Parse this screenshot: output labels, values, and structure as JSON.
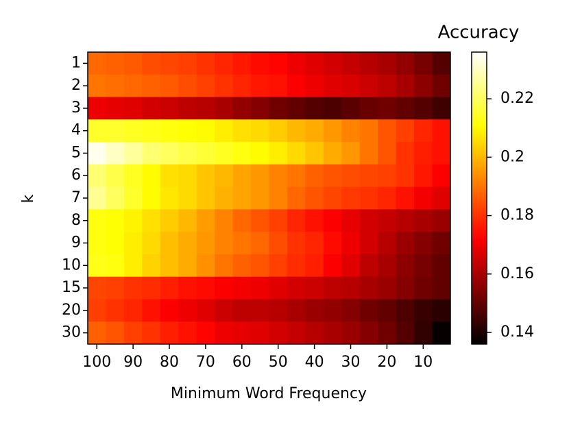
{
  "chart_data": {
    "type": "heatmap",
    "colorbar_title": "Accuracy",
    "xlabel": "Minimum Word Frequency",
    "ylabel": "k",
    "colormap": "hot",
    "x": [
      100,
      95,
      90,
      85,
      80,
      75,
      70,
      65,
      60,
      55,
      50,
      45,
      40,
      35,
      30,
      25,
      20,
      15,
      10,
      5
    ],
    "xlim": [
      102.5,
      2.5
    ],
    "xticks": [
      100,
      90,
      80,
      70,
      60,
      50,
      40,
      30,
      20,
      10
    ],
    "categories": [
      "1",
      "2",
      "3",
      "4",
      "5",
      "6",
      "7",
      "8",
      "9",
      "10",
      "15",
      "20",
      "30"
    ],
    "z": [
      [
        0.188,
        0.187,
        0.186,
        0.184,
        0.183,
        0.182,
        0.18,
        0.178,
        0.176,
        0.174,
        0.173,
        0.17,
        0.168,
        0.166,
        0.164,
        0.162,
        0.16,
        0.157,
        0.153,
        0.148
      ],
      [
        0.19,
        0.189,
        0.188,
        0.187,
        0.186,
        0.184,
        0.182,
        0.18,
        0.178,
        0.176,
        0.175,
        0.172,
        0.17,
        0.168,
        0.167,
        0.165,
        0.163,
        0.16,
        0.156,
        0.152
      ],
      [
        0.17,
        0.169,
        0.168,
        0.166,
        0.165,
        0.163,
        0.162,
        0.16,
        0.157,
        0.155,
        0.152,
        0.15,
        0.148,
        0.147,
        0.149,
        0.151,
        0.152,
        0.15,
        0.148,
        0.145
      ],
      [
        0.215,
        0.215,
        0.214,
        0.213,
        0.212,
        0.211,
        0.21,
        0.208,
        0.206,
        0.205,
        0.203,
        0.2,
        0.198,
        0.195,
        0.192,
        0.19,
        0.185,
        0.182,
        0.178,
        0.175
      ],
      [
        0.234,
        0.23,
        0.226,
        0.222,
        0.22,
        0.218,
        0.216,
        0.214,
        0.212,
        0.21,
        0.208,
        0.205,
        0.202,
        0.198,
        0.195,
        0.19,
        0.185,
        0.18,
        0.177,
        0.175
      ],
      [
        0.222,
        0.218,
        0.214,
        0.21,
        0.206,
        0.205,
        0.202,
        0.2,
        0.197,
        0.195,
        0.192,
        0.19,
        0.187,
        0.185,
        0.184,
        0.183,
        0.182,
        0.18,
        0.176,
        0.172
      ],
      [
        0.225,
        0.22,
        0.215,
        0.21,
        0.207,
        0.205,
        0.202,
        0.199,
        0.197,
        0.195,
        0.192,
        0.188,
        0.185,
        0.183,
        0.181,
        0.18,
        0.178,
        0.175,
        0.171,
        0.168
      ],
      [
        0.212,
        0.211,
        0.209,
        0.206,
        0.203,
        0.2,
        0.196,
        0.192,
        0.188,
        0.185,
        0.182,
        0.178,
        0.175,
        0.172,
        0.169,
        0.166,
        0.164,
        0.162,
        0.16,
        0.158
      ],
      [
        0.212,
        0.211,
        0.208,
        0.205,
        0.201,
        0.198,
        0.195,
        0.192,
        0.19,
        0.188,
        0.184,
        0.18,
        0.178,
        0.174,
        0.17,
        0.166,
        0.162,
        0.158,
        0.155,
        0.152
      ],
      [
        0.213,
        0.212,
        0.208,
        0.204,
        0.201,
        0.198,
        0.194,
        0.19,
        0.187,
        0.185,
        0.182,
        0.179,
        0.177,
        0.172,
        0.168,
        0.163,
        0.16,
        0.156,
        0.153,
        0.15
      ],
      [
        0.183,
        0.182,
        0.18,
        0.179,
        0.177,
        0.175,
        0.174,
        0.172,
        0.171,
        0.17,
        0.168,
        0.166,
        0.165,
        0.163,
        0.162,
        0.16,
        0.158,
        0.155,
        0.152,
        0.15
      ],
      [
        0.182,
        0.18,
        0.178,
        0.175,
        0.172,
        0.17,
        0.168,
        0.165,
        0.163,
        0.163,
        0.162,
        0.16,
        0.158,
        0.157,
        0.155,
        0.152,
        0.15,
        0.147,
        0.144,
        0.142
      ],
      [
        0.187,
        0.185,
        0.182,
        0.18,
        0.177,
        0.175,
        0.173,
        0.17,
        0.169,
        0.168,
        0.166,
        0.164,
        0.162,
        0.16,
        0.158,
        0.155,
        0.152,
        0.148,
        0.143,
        0.137
      ]
    ],
    "clim": [
      0.136,
      0.236
    ],
    "cticks": [
      0.14,
      0.16,
      0.18,
      0.2,
      0.22
    ]
  }
}
